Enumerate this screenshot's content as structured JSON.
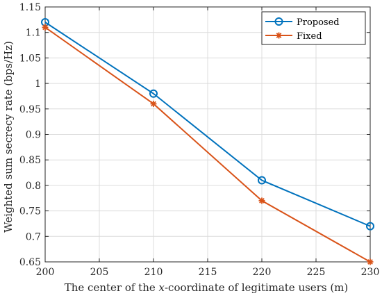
{
  "chart_data": {
    "type": "line",
    "title": "",
    "xlabel_parts": [
      "The center of the ",
      "x",
      "-coordinate of legitimate users (m)"
    ],
    "ylabel": "Weighted sum secrecy rate (bps/Hz)",
    "xlim": [
      200,
      230
    ],
    "ylim": [
      0.65,
      1.15
    ],
    "xticks": [
      200,
      205,
      210,
      215,
      220,
      225,
      230
    ],
    "xtick_labels": [
      "200",
      "205",
      "210",
      "215",
      "220",
      "225",
      "230"
    ],
    "yticks": [
      0.65,
      0.7,
      0.75,
      0.8,
      0.85,
      0.9,
      0.95,
      1,
      1.05,
      1.1,
      1.15
    ],
    "ytick_labels": [
      "0.65",
      "0.7",
      "0.75",
      "0.8",
      "0.85",
      "0.9",
      "0.95",
      "1",
      "1.05",
      "1.1",
      "1.15"
    ],
    "grid": true,
    "legend_position": "top-right",
    "series": [
      {
        "name": "Proposed",
        "color": "#0072BD",
        "marker": "circle",
        "x": [
          200,
          210,
          220,
          230
        ],
        "y": [
          1.12,
          0.98,
          0.81,
          0.72
        ]
      },
      {
        "name": "Fixed",
        "color": "#D95319",
        "marker": "asterisk",
        "x": [
          200,
          210,
          220,
          230
        ],
        "y": [
          1.11,
          0.96,
          0.77,
          0.65
        ]
      }
    ]
  }
}
